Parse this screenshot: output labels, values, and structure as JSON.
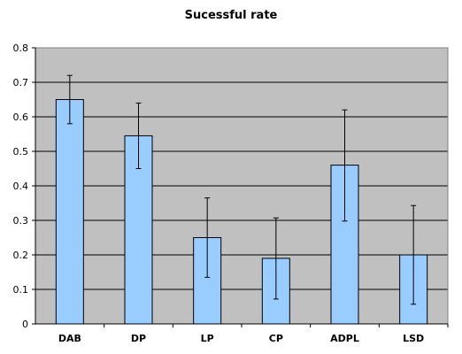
{
  "chart_data": {
    "type": "bar",
    "title": "Sucessful rate",
    "xlabel": "",
    "ylabel": "",
    "categories": [
      "DAB",
      "DP",
      "LP",
      "CP",
      "ADPL",
      "LSD"
    ],
    "values": [
      0.65,
      0.545,
      0.25,
      0.19,
      0.46,
      0.2
    ],
    "error_low": [
      0.58,
      0.45,
      0.135,
      0.072,
      0.298,
      0.057
    ],
    "error_high": [
      0.72,
      0.64,
      0.365,
      0.307,
      0.62,
      0.343
    ],
    "ylim": [
      0,
      0.8
    ],
    "yticks": [
      0,
      0.1,
      0.2,
      0.3,
      0.4,
      0.5,
      0.6,
      0.7,
      0.8
    ],
    "ytick_labels": [
      "0",
      "0.1",
      "0.2",
      "0.3",
      "0.4",
      "0.5",
      "0.6",
      "0.7",
      "0.8"
    ],
    "grid": true,
    "legend": false,
    "colors": {
      "bar_fill": "#99ccff",
      "bar_stroke": "#000000",
      "plot_bg": "#c0c0c0",
      "grid": "#000000",
      "error_bar": "#000000"
    }
  }
}
